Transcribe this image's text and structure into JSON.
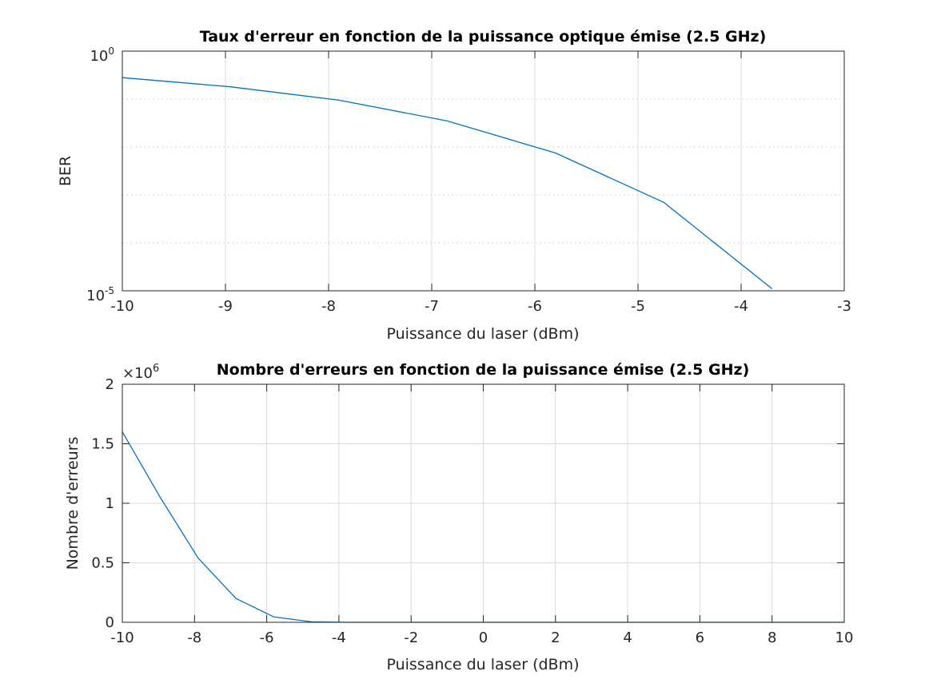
{
  "chart_data": [
    {
      "type": "line",
      "title": "Taux d'erreur en fonction de la puissance optique émise (2.5 GHz)",
      "xlabel": "Puissance du laser (dBm)",
      "ylabel": "BER",
      "yscale": "log",
      "xlim": [
        -10,
        -3
      ],
      "ylim": [
        1e-05,
        1
      ],
      "xticks": [
        "-10",
        "-9",
        "-8",
        "-7",
        "-6",
        "-5",
        "-4",
        "-3"
      ],
      "yticks": [
        {
          "base": "10",
          "exp": "0"
        },
        {
          "base": "10",
          "exp": "-5"
        }
      ],
      "grid": true,
      "color": "#0072BD",
      "series": [
        {
          "x": [
            -10,
            -8.95,
            -7.9,
            -6.85,
            -5.8,
            -4.75,
            -3.7
          ],
          "y": [
            0.28,
            0.18,
            0.095,
            0.035,
            0.0075,
            0.0007,
            1.1e-05
          ]
        }
      ]
    },
    {
      "type": "line",
      "title": "Nombre d'erreurs en fonction de la puissance émise (2.5 GHz)",
      "xlabel": "Puissance du laser (dBm)",
      "ylabel": "Nombre d'erreurs",
      "xlim": [
        -10,
        10
      ],
      "ylim": [
        0,
        2
      ],
      "yexponent": {
        "prefix": "×10",
        "exp": "6"
      },
      "xticks": [
        "-10",
        "-8",
        "-6",
        "-4",
        "-2",
        "0",
        "2",
        "4",
        "6",
        "8",
        "10"
      ],
      "yticks": [
        "0",
        "0.5",
        "1",
        "1.5",
        "2"
      ],
      "grid": true,
      "color": "#0072BD",
      "series": [
        {
          "x": [
            -10,
            -8.95,
            -7.9,
            -6.85,
            -5.8,
            -4.75,
            -3.7,
            -2.65,
            -1.6,
            -0.55,
            0.5,
            1.55,
            2.6,
            3.65,
            4.7,
            5.75,
            6.8,
            7.85,
            8.9,
            10
          ],
          "y": [
            1.6,
            1.05,
            0.54,
            0.2,
            0.045,
            0.004,
            0,
            0,
            0,
            0,
            0,
            0,
            0,
            0,
            0,
            0,
            0,
            0,
            0,
            0
          ]
        }
      ]
    }
  ]
}
